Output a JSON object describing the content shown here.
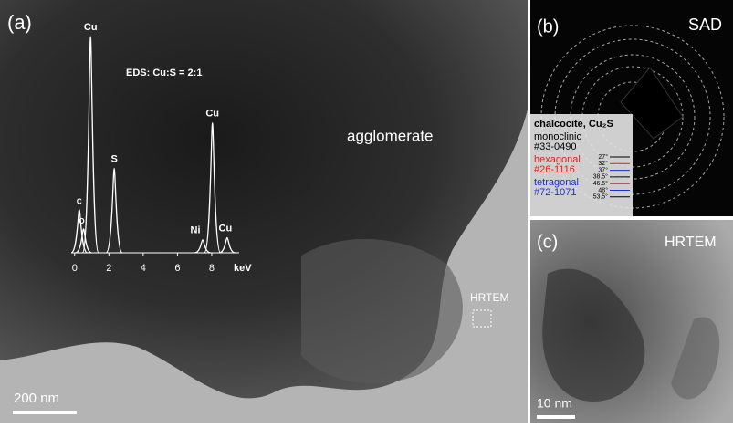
{
  "panel_a": {
    "label": "(a)",
    "region_label": "agglomerate",
    "box_label": "HRTEM",
    "scale_bar": "200 nm",
    "eds": {
      "type": "line",
      "title": "EDS: Cu:S = 2:1",
      "xlabel": "keV",
      "xlim": [
        -0.2,
        9.6
      ],
      "ylim": [
        0,
        100
      ],
      "xticks": [
        0,
        2,
        4,
        6,
        8
      ],
      "color": "#ffffff",
      "peaks": [
        {
          "label": "C",
          "x": 0.27,
          "y": 20
        },
        {
          "label": "O",
          "x": 0.52,
          "y": 11
        },
        {
          "label": "Cu",
          "x": 0.93,
          "y": 100
        },
        {
          "label": "S",
          "x": 2.31,
          "y": 39
        },
        {
          "label": "Ni",
          "x": 7.47,
          "y": 6
        },
        {
          "label": "Cu",
          "x": 8.04,
          "y": 60
        },
        {
          "label": "Cu",
          "x": 8.9,
          "y": 7
        }
      ]
    }
  },
  "panel_b": {
    "label": "(b)",
    "mode": "SAD",
    "legend": {
      "title": "chalcocite, Cu₂S",
      "entries": [
        {
          "name": "monoclinic",
          "card": "#33-0490",
          "color": "#000000"
        },
        {
          "name": "hexagonal",
          "card": "#26-1116",
          "color": "#e0201a"
        },
        {
          "name": "tetragonal",
          "card": "#72-1071",
          "color": "#1a2fe0"
        }
      ],
      "angles": [
        "27°",
        "32°",
        "37°",
        "38.5°",
        "46.5°",
        "48°",
        "53.5°"
      ]
    }
  },
  "panel_c": {
    "label": "(c)",
    "mode": "HRTEM",
    "scale_bar": "10 nm"
  }
}
